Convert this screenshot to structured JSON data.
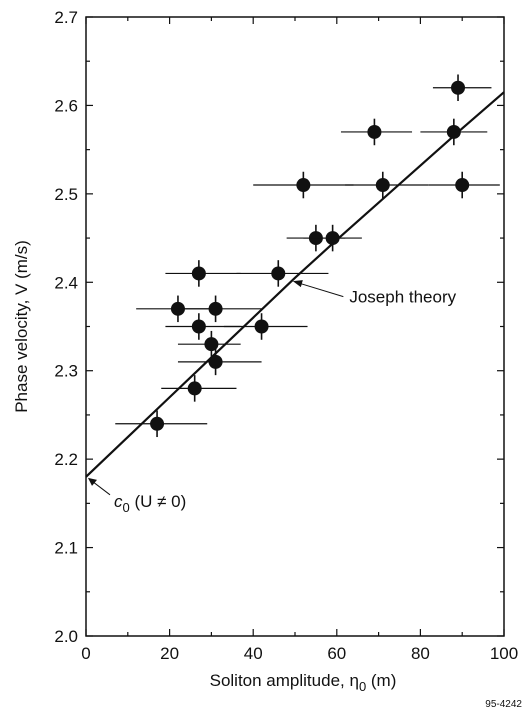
{
  "chart_data": {
    "type": "scatter",
    "xlabel": "Soliton amplitude, η",
    "xlabel_sub": "0",
    "xlabel_unit": " (m)",
    "ylabel": "Phase velocity, V (m/s)",
    "xlim": [
      0,
      100
    ],
    "ylim": [
      2.0,
      2.7
    ],
    "x_ticks": [
      0,
      20,
      40,
      60,
      80,
      100
    ],
    "y_ticks": [
      2.0,
      2.1,
      2.2,
      2.3,
      2.4,
      2.5,
      2.6,
      2.7
    ],
    "x_tick_labels": [
      "0",
      "20",
      "40",
      "60",
      "80",
      "100"
    ],
    "y_tick_labels": [
      "2.0",
      "2.1",
      "2.2",
      "2.3",
      "2.4",
      "2.5",
      "2.6",
      "2.7"
    ],
    "grid": false,
    "colors": {
      "ink": "#111111",
      "background": "#ffffff"
    },
    "points": [
      {
        "x": 17,
        "y": 2.24,
        "xerr": [
          10,
          12
        ],
        "yerr": 0.015
      },
      {
        "x": 22,
        "y": 2.37,
        "xerr": [
          10,
          8
        ],
        "yerr": 0.015
      },
      {
        "x": 26,
        "y": 2.28,
        "xerr": [
          8,
          10
        ],
        "yerr": 0.015
      },
      {
        "x": 27,
        "y": 2.41,
        "xerr": [
          8,
          10
        ],
        "yerr": 0.015
      },
      {
        "x": 27,
        "y": 2.35,
        "xerr": [
          8,
          10
        ],
        "yerr": 0.015
      },
      {
        "x": 30,
        "y": 2.33,
        "xerr": [
          8,
          7
        ],
        "yerr": 0.015
      },
      {
        "x": 31,
        "y": 2.37,
        "xerr": [
          9,
          11
        ],
        "yerr": 0.015
      },
      {
        "x": 31,
        "y": 2.31,
        "xerr": [
          9,
          11
        ],
        "yerr": 0.015
      },
      {
        "x": 42,
        "y": 2.35,
        "xerr": [
          9,
          11
        ],
        "yerr": 0.015
      },
      {
        "x": 46,
        "y": 2.41,
        "xerr": [
          10,
          12
        ],
        "yerr": 0.015
      },
      {
        "x": 52,
        "y": 2.51,
        "xerr": [
          12,
          12
        ],
        "yerr": 0.015
      },
      {
        "x": 55,
        "y": 2.45,
        "xerr": [
          7,
          7
        ],
        "yerr": 0.015
      },
      {
        "x": 59,
        "y": 2.45,
        "xerr": [
          7,
          7
        ],
        "yerr": 0.015
      },
      {
        "x": 69,
        "y": 2.57,
        "xerr": [
          8,
          9
        ],
        "yerr": 0.015
      },
      {
        "x": 71,
        "y": 2.51,
        "xerr": [
          9,
          11
        ],
        "yerr": 0.015
      },
      {
        "x": 88,
        "y": 2.57,
        "xerr": [
          8,
          8
        ],
        "yerr": 0.015
      },
      {
        "x": 89,
        "y": 2.62,
        "xerr": [
          6,
          8
        ],
        "yerr": 0.015
      },
      {
        "x": 90,
        "y": 2.51,
        "xerr": [
          8,
          9
        ],
        "yerr": 0.015
      }
    ],
    "theory_curve": {
      "label": "Joseph theory",
      "x": [
        0,
        10,
        20,
        30,
        40,
        50,
        60,
        70,
        80,
        90,
        100
      ],
      "y": [
        2.18,
        2.225,
        2.27,
        2.315,
        2.36,
        2.405,
        2.448,
        2.49,
        2.532,
        2.574,
        2.615
      ]
    },
    "annotations": [
      {
        "text_prefix": "c",
        "text_sub": "0",
        "text_suffix": " (U ≠ 0)",
        "x": 0,
        "y": 2.18
      },
      {
        "text": "Joseph theory",
        "x": 48,
        "y": 2.41
      }
    ],
    "figure_number": "95-4242"
  }
}
